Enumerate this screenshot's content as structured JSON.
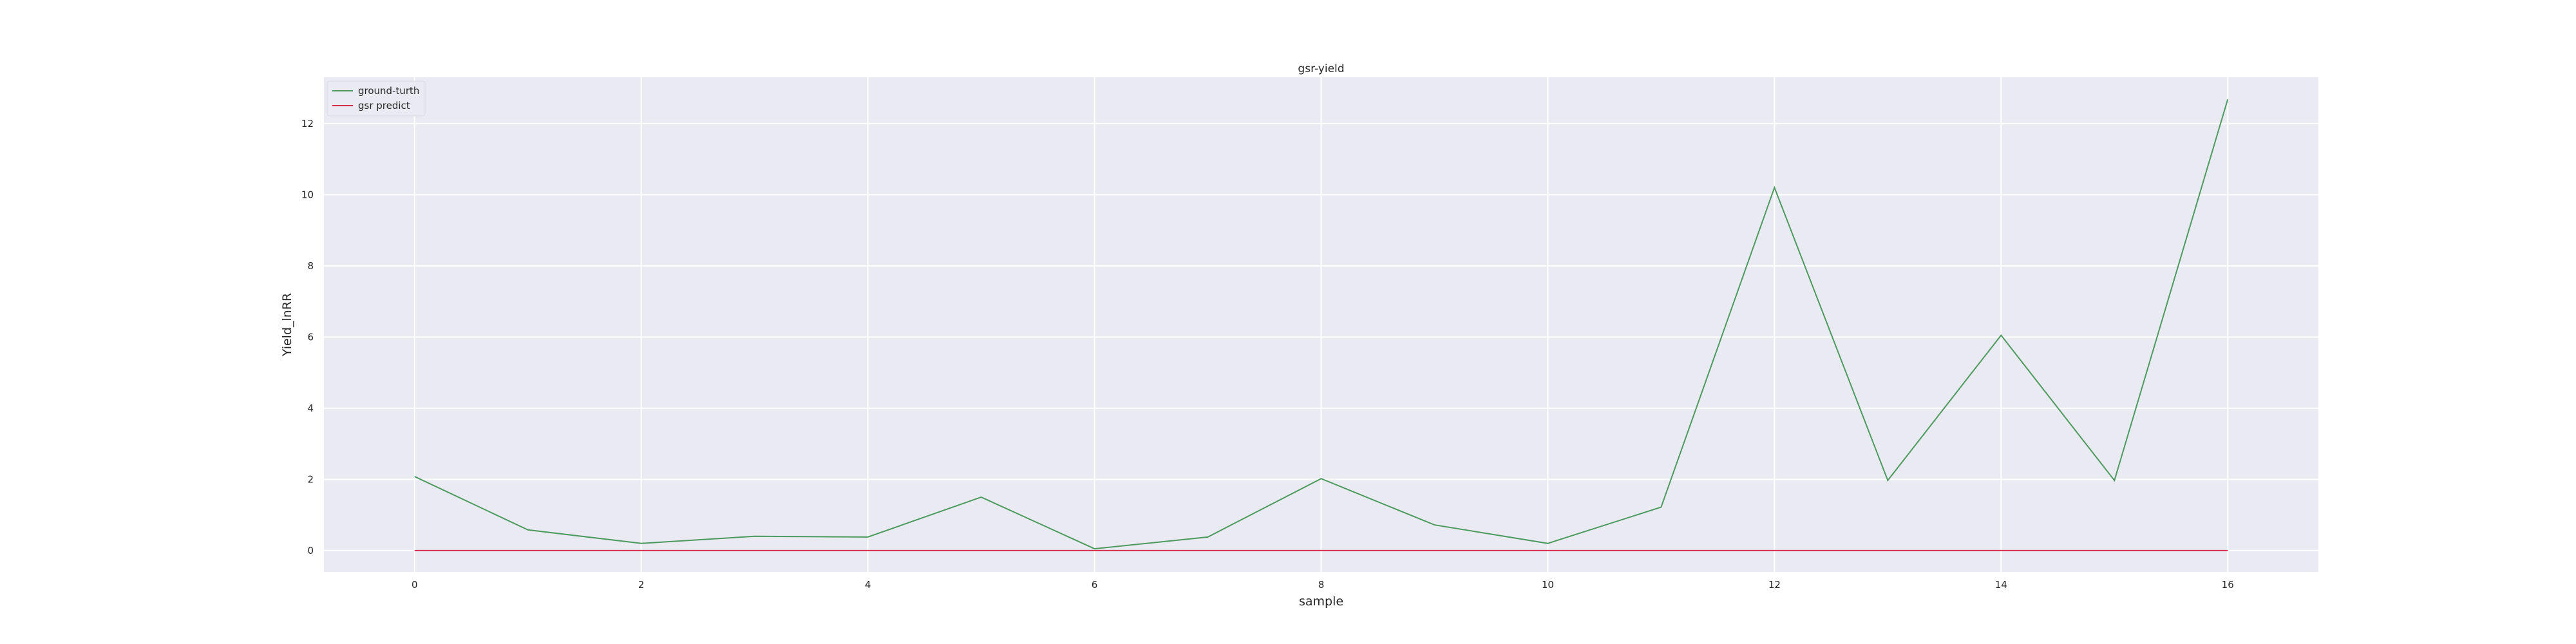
{
  "chart_data": {
    "type": "line",
    "title": "gsr-yield",
    "xlabel": "sample",
    "ylabel": "Yield_lnRR",
    "x": [
      0,
      1,
      2,
      3,
      4,
      5,
      6,
      7,
      8,
      9,
      10,
      11,
      12,
      13,
      14,
      15,
      16
    ],
    "xlim": [
      -0.8,
      16.8
    ],
    "ylim": [
      -0.6,
      13.3
    ],
    "x_ticks": [
      0,
      2,
      4,
      6,
      8,
      10,
      12,
      14,
      16
    ],
    "y_ticks": [
      0,
      2,
      4,
      6,
      8,
      10,
      12
    ],
    "grid": true,
    "legend_position": "top-left",
    "series": [
      {
        "name": "ground-turth",
        "color": "#4c9a5e",
        "values": [
          2.08,
          0.58,
          0.2,
          0.4,
          0.38,
          1.5,
          0.05,
          0.38,
          2.02,
          0.72,
          0.2,
          1.22,
          10.2,
          1.97,
          6.05,
          1.97,
          12.68
        ]
      },
      {
        "name": "gsr predict",
        "color": "#d62d4a",
        "values": [
          0,
          0,
          0,
          0,
          0,
          0,
          0,
          0,
          0,
          0,
          0,
          0,
          0,
          0,
          0,
          0,
          0
        ]
      }
    ],
    "colors": {
      "plot_background": "#eaeaf2",
      "grid": "#ffffff",
      "text": "#262626"
    }
  }
}
